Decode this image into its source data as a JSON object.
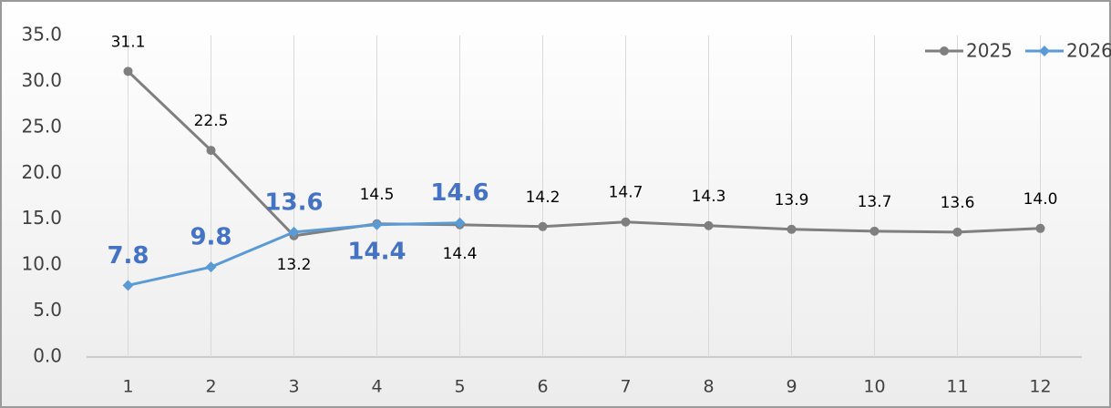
{
  "chart_data": {
    "type": "line",
    "categories": [
      "1",
      "2",
      "3",
      "4",
      "5",
      "6",
      "7",
      "8",
      "9",
      "10",
      "11",
      "12"
    ],
    "series": [
      {
        "name": "2025",
        "color": "#7f7f7f",
        "marker": "circle",
        "values": [
          31.1,
          22.5,
          13.2,
          14.5,
          14.4,
          14.2,
          14.7,
          14.3,
          13.9,
          13.7,
          13.6,
          14.0
        ],
        "value_labels": [
          "31.1",
          "22.5",
          "13.2",
          "14.5",
          "14.4",
          "14.2",
          "14.7",
          "14.3",
          "13.9",
          "13.7",
          "13.6",
          "14.0"
        ]
      },
      {
        "name": "2026",
        "color": "#5b9bd5",
        "marker": "diamond",
        "values": [
          7.8,
          9.8,
          13.6,
          14.4,
          14.6,
          null,
          null,
          null,
          null,
          null,
          null,
          null
        ],
        "value_labels": [
          "7.8",
          "9.8",
          "13.6",
          "14.4",
          "14.6",
          null,
          null,
          null,
          null,
          null,
          null,
          null
        ]
      }
    ],
    "ylim": [
      0,
      35
    ],
    "yticks": [
      {
        "value": 0,
        "label": "0.0"
      },
      {
        "value": 5,
        "label": "5.0"
      },
      {
        "value": 10,
        "label": "10.0"
      },
      {
        "value": 15,
        "label": "15.0"
      },
      {
        "value": 20,
        "label": "20.0"
      },
      {
        "value": 25,
        "label": "25.0"
      },
      {
        "value": 30,
        "label": "30.0"
      },
      {
        "value": 35,
        "label": "35.0"
      }
    ],
    "legend": "top-right",
    "grid": "vertical"
  }
}
